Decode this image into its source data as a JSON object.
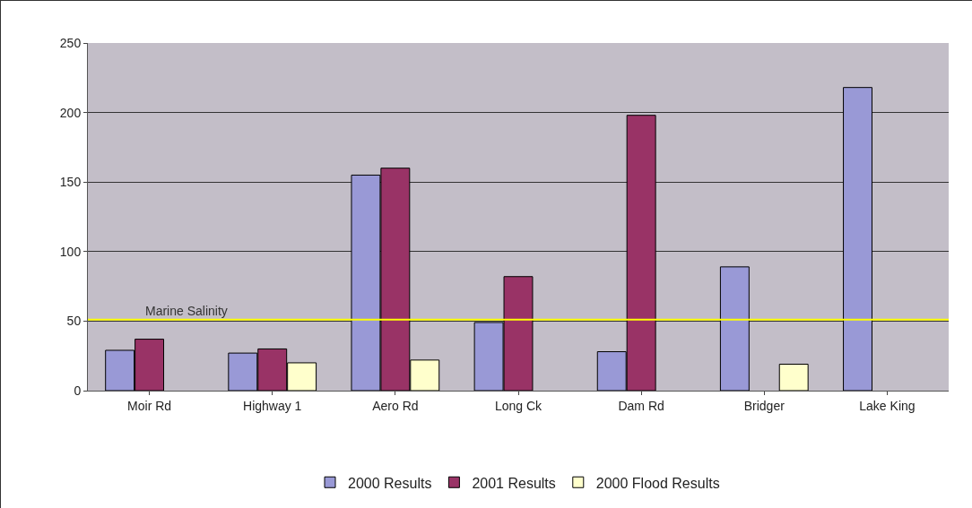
{
  "chart_data": {
    "type": "bar",
    "categories": [
      "Moir Rd",
      "Highway 1",
      "Aero Rd",
      "Long Ck",
      "Dam Rd",
      "Bridger",
      "Lake King"
    ],
    "series": [
      {
        "name": "2000 Results",
        "color": "#9999d6",
        "values": [
          29,
          27,
          155,
          49,
          28,
          89,
          218
        ]
      },
      {
        "name": "2001 Results",
        "color": "#993366",
        "values": [
          37,
          30,
          160,
          82,
          198,
          null,
          null
        ]
      },
      {
        "name": "2000 Flood Results",
        "color": "#ffffcc",
        "values": [
          null,
          20,
          22,
          null,
          null,
          19,
          null
        ]
      }
    ],
    "ylim": [
      0,
      250
    ],
    "yticks": [
      0,
      50,
      100,
      150,
      200,
      250
    ],
    "grid": "y",
    "legend": "bottom",
    "ref_lines": [
      {
        "axis": "y",
        "value": 51,
        "label": "Marine Salinity",
        "color": "#ffff00"
      }
    ]
  }
}
